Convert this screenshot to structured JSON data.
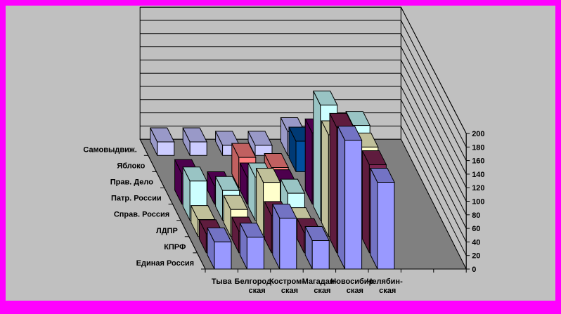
{
  "chart_data": {
    "type": "bar",
    "subtype": "3d-column",
    "title": "",
    "categories": [
      [
        "Тыва"
      ],
      [
        "Белгород-",
        "ская"
      ],
      [
        "Костром-",
        "ская"
      ],
      [
        "Магадан-",
        "ская"
      ],
      [
        "Новосибир",
        "ская"
      ],
      [
        "Челябин-",
        "ская"
      ]
    ],
    "series": [
      {
        "name": "Единая Россия",
        "color": "#9999ff",
        "side": "#7373c4",
        "values": [
          40,
          47,
          75,
          42,
          190,
          128
        ]
      },
      {
        "name": "КПРФ",
        "color": "#7a2550",
        "side": "#5f1c3e",
        "values": [
          28,
          32,
          55,
          30,
          185,
          130
        ]
      },
      {
        "name": "ЛДПР",
        "color": "#ffffcc",
        "side": "#c0c09a",
        "values": [
          25,
          40,
          80,
          22,
          150,
          132
        ]
      },
      {
        "name": "Справ. Россия",
        "color": "#ccffff",
        "side": "#99c4c4",
        "values": [
          58,
          44,
          64,
          40,
          170,
          140
        ]
      },
      {
        "name": "Патр. России",
        "color": "#660066",
        "side": "#4d004d",
        "values": [
          45,
          27,
          40,
          30,
          105,
          0
        ]
      },
      {
        "name": "Прав. Дело",
        "color": "#ff8080",
        "side": "#c06060",
        "values": [
          0,
          0,
          45,
          30,
          0,
          0
        ]
      },
      {
        "name": "Яблоко",
        "color": "#004f9f",
        "side": "#003a75",
        "values": [
          0,
          0,
          0,
          0,
          45,
          0
        ]
      },
      {
        "name": "Самовыдвиж.",
        "color": "#ccccff",
        "side": "#9999c8",
        "values": [
          20,
          20,
          15,
          15,
          35,
          0
        ]
      }
    ],
    "yticks": [
      0,
      20,
      40,
      60,
      80,
      100,
      120,
      140,
      160,
      180,
      200
    ],
    "ylim": [
      0,
      200
    ],
    "xlabel": "",
    "ylabel": "",
    "grid": true,
    "legend": "none"
  }
}
